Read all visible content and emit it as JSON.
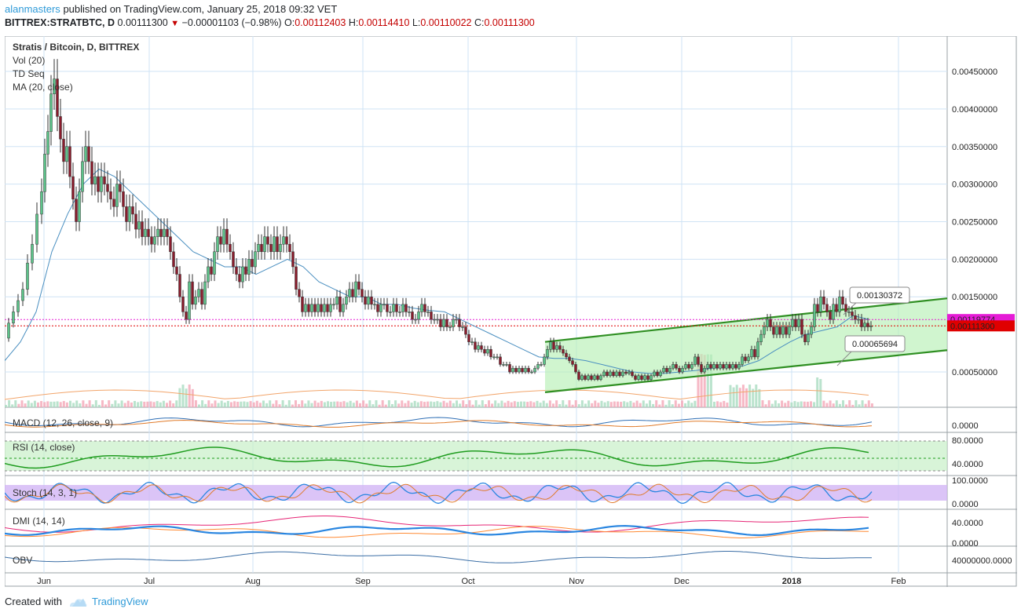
{
  "header": {
    "user": "alanmasters",
    "published": "published on TradingView.com, January 25, 2018 09:32 VET",
    "symbol": "BITTREX:STRATBTC, D",
    "last": "0.00111300",
    "change": "−0.00001103 (−0.98%)",
    "open_label": "O:",
    "open": "0.00112403",
    "high_label": "H:",
    "high": "0.00114410",
    "low_label": "L:",
    "low": "0.00110022",
    "close_label": "C:",
    "close": "0.00111300"
  },
  "legend": [
    "Stratis / Bitcoin, D, BITTREX",
    "Vol (20)",
    "TD Seq",
    "MA (20, close)"
  ],
  "footer": {
    "created_with": "Created with",
    "brand": "TradingView"
  },
  "colors": {
    "up": "#5cc48a",
    "down": "#8a1c2c",
    "ma": "#4a8fc0",
    "channel": "#2f8f22",
    "channel_fill": "#b7f0b5",
    "price_tag1": "#e51bd6",
    "price_tag2": "#e00000",
    "macd": "#2f6fb5",
    "rsi": "#1e9c1e",
    "stoch_fill": "#d2b5f5",
    "dmi_plus": "#ff8a33",
    "dmi_minus": "#e62575",
    "adx": "#2a86e0",
    "obv": "#3b6ea5"
  },
  "chart_data": {
    "type": "line",
    "title": "Stratis / Bitcoin, D, BITTREX",
    "x_ticks": [
      "Jun",
      "Jul",
      "Aug",
      "Sep",
      "Oct",
      "Nov",
      "Dec",
      "2018",
      "Feb"
    ],
    "y_ticks": [
      "0.00450000",
      "0.00400000",
      "0.00350000",
      "0.00300000",
      "0.00250000",
      "0.00200000",
      "0.00150000",
      "0.00050000"
    ],
    "ylim": [
      3e-05,
      0.00497
    ],
    "price_labels": [
      "0.00119774",
      "0.00111300"
    ],
    "annotations": [
      "0.00130372",
      "0.00065694"
    ],
    "price_path": [
      [
        0,
        0.00095
      ],
      [
        6,
        0.00115
      ],
      [
        12,
        0.0013
      ],
      [
        18,
        0.00145
      ],
      [
        24,
        0.0016
      ],
      [
        30,
        0.00195
      ],
      [
        36,
        0.0022
      ],
      [
        42,
        0.0026
      ],
      [
        48,
        0.0029
      ],
      [
        52,
        0.0034
      ],
      [
        56,
        0.0037
      ],
      [
        60,
        0.0042
      ],
      [
        64,
        0.0044
      ],
      [
        68,
        0.0039
      ],
      [
        72,
        0.0036
      ],
      [
        76,
        0.0033
      ],
      [
        80,
        0.0035
      ],
      [
        84,
        0.0031
      ],
      [
        88,
        0.0028
      ],
      [
        92,
        0.0025
      ],
      [
        96,
        0.0029
      ],
      [
        100,
        0.0033
      ],
      [
        104,
        0.0035
      ],
      [
        108,
        0.0033
      ],
      [
        112,
        0.003
      ],
      [
        116,
        0.0031
      ],
      [
        120,
        0.0029
      ],
      [
        124,
        0.0031
      ],
      [
        128,
        0.003
      ],
      [
        132,
        0.0029
      ],
      [
        136,
        0.0028
      ],
      [
        140,
        0.0027
      ],
      [
        144,
        0.003
      ],
      [
        148,
        0.0029
      ],
      [
        152,
        0.0027
      ],
      [
        156,
        0.0025
      ],
      [
        160,
        0.0027
      ],
      [
        164,
        0.0026
      ],
      [
        168,
        0.0024
      ],
      [
        172,
        0.0025
      ],
      [
        176,
        0.0023
      ],
      [
        180,
        0.0024
      ],
      [
        184,
        0.0023
      ],
      [
        188,
        0.0022
      ],
      [
        192,
        0.0023
      ],
      [
        196,
        0.0024
      ],
      [
        200,
        0.0023
      ],
      [
        204,
        0.0024
      ],
      [
        208,
        0.0023
      ],
      [
        212,
        0.0021
      ],
      [
        216,
        0.0019
      ],
      [
        220,
        0.0018
      ],
      [
        224,
        0.0015
      ],
      [
        228,
        0.0013
      ],
      [
        232,
        0.0012
      ],
      [
        236,
        0.0017
      ],
      [
        240,
        0.0014
      ],
      [
        244,
        0.0015
      ],
      [
        248,
        0.0016
      ],
      [
        252,
        0.0014
      ],
      [
        256,
        0.0017
      ],
      [
        260,
        0.0019
      ],
      [
        264,
        0.0018
      ],
      [
        268,
        0.0021
      ],
      [
        272,
        0.0023
      ],
      [
        276,
        0.0022
      ],
      [
        280,
        0.0024
      ],
      [
        284,
        0.0022
      ],
      [
        288,
        0.0021
      ],
      [
        292,
        0.0019
      ],
      [
        296,
        0.0018
      ],
      [
        300,
        0.0017
      ],
      [
        304,
        0.0019
      ],
      [
        308,
        0.0018
      ],
      [
        312,
        0.002
      ],
      [
        316,
        0.0019
      ],
      [
        320,
        0.0021
      ],
      [
        324,
        0.0022
      ],
      [
        328,
        0.0021
      ],
      [
        332,
        0.0023
      ],
      [
        336,
        0.0022
      ],
      [
        340,
        0.0021
      ],
      [
        344,
        0.0023
      ],
      [
        348,
        0.0021
      ],
      [
        352,
        0.0022
      ],
      [
        356,
        0.0023
      ],
      [
        360,
        0.0022
      ],
      [
        364,
        0.0021
      ],
      [
        368,
        0.0019
      ],
      [
        372,
        0.0016
      ],
      [
        376,
        0.0015
      ],
      [
        380,
        0.0013
      ],
      [
        384,
        0.0014
      ],
      [
        388,
        0.0013
      ],
      [
        392,
        0.0014
      ],
      [
        396,
        0.0013
      ],
      [
        400,
        0.0014
      ],
      [
        404,
        0.0013
      ],
      [
        408,
        0.0014
      ],
      [
        412,
        0.0013
      ],
      [
        416,
        0.0014
      ],
      [
        420,
        0.0014
      ],
      [
        424,
        0.0015
      ],
      [
        428,
        0.0013
      ],
      [
        432,
        0.0014
      ],
      [
        436,
        0.0015
      ],
      [
        440,
        0.0016
      ],
      [
        444,
        0.0015
      ],
      [
        448,
        0.0017
      ],
      [
        452,
        0.0016
      ],
      [
        456,
        0.0015
      ],
      [
        460,
        0.0014
      ],
      [
        464,
        0.0015
      ],
      [
        468,
        0.0014
      ],
      [
        472,
        0.0014
      ],
      [
        476,
        0.0013
      ],
      [
        480,
        0.0014
      ],
      [
        484,
        0.0014
      ],
      [
        488,
        0.0013
      ],
      [
        492,
        0.0013
      ],
      [
        496,
        0.0014
      ],
      [
        500,
        0.0013
      ],
      [
        504,
        0.0013
      ],
      [
        508,
        0.0014
      ],
      [
        512,
        0.0013
      ],
      [
        516,
        0.0013
      ],
      [
        520,
        0.0012
      ],
      [
        524,
        0.0012
      ],
      [
        528,
        0.0013
      ],
      [
        532,
        0.0014
      ],
      [
        536,
        0.0013
      ],
      [
        540,
        0.0013
      ],
      [
        544,
        0.0012
      ],
      [
        548,
        0.0012
      ],
      [
        552,
        0.0012
      ],
      [
        556,
        0.0011
      ],
      [
        560,
        0.0012
      ],
      [
        564,
        0.0011
      ],
      [
        568,
        0.0011
      ],
      [
        572,
        0.0012
      ],
      [
        576,
        0.0012
      ],
      [
        580,
        0.0011
      ],
      [
        584,
        0.0011
      ],
      [
        588,
        0.001
      ],
      [
        592,
        0.0009
      ],
      [
        596,
        0.0009
      ],
      [
        600,
        0.0008
      ],
      [
        604,
        0.00085
      ],
      [
        608,
        0.0008
      ],
      [
        612,
        0.00075
      ],
      [
        616,
        0.0008
      ],
      [
        620,
        0.0007
      ],
      [
        624,
        0.0007
      ],
      [
        628,
        0.0007
      ],
      [
        632,
        0.0006
      ],
      [
        636,
        0.0006
      ],
      [
        640,
        0.0006
      ],
      [
        644,
        0.0005
      ],
      [
        648,
        0.00055
      ],
      [
        652,
        0.0005
      ],
      [
        656,
        0.00055
      ],
      [
        660,
        0.0005
      ],
      [
        664,
        0.00055
      ],
      [
        668,
        0.0005
      ],
      [
        672,
        0.0005
      ],
      [
        676,
        0.00055
      ],
      [
        680,
        0.0006
      ],
      [
        684,
        0.0006
      ],
      [
        688,
        0.0007
      ],
      [
        692,
        0.0008
      ],
      [
        696,
        0.0009
      ],
      [
        700,
        0.0008
      ],
      [
        704,
        0.00085
      ],
      [
        708,
        0.0008
      ],
      [
        712,
        0.00075
      ],
      [
        716,
        0.0007
      ],
      [
        720,
        0.00065
      ],
      [
        724,
        0.0006
      ],
      [
        728,
        0.0005
      ],
      [
        732,
        0.0004
      ],
      [
        736,
        0.00045
      ],
      [
        740,
        0.0004
      ],
      [
        744,
        0.00045
      ],
      [
        748,
        0.0004
      ],
      [
        752,
        0.00045
      ],
      [
        756,
        0.0004
      ],
      [
        760,
        0.00045
      ],
      [
        764,
        0.0005
      ],
      [
        768,
        0.00045
      ],
      [
        772,
        0.0005
      ],
      [
        776,
        0.00045
      ],
      [
        780,
        0.0005
      ],
      [
        784,
        0.00045
      ],
      [
        788,
        0.0005
      ],
      [
        792,
        0.00048
      ],
      [
        796,
        0.0005
      ],
      [
        800,
        0.00045
      ],
      [
        804,
        0.0004
      ],
      [
        808,
        0.00045
      ],
      [
        812,
        0.0004
      ],
      [
        816,
        0.00045
      ],
      [
        820,
        0.0004
      ],
      [
        824,
        0.00045
      ],
      [
        828,
        0.0005
      ],
      [
        832,
        0.00045
      ],
      [
        836,
        0.0005
      ],
      [
        840,
        0.00055
      ],
      [
        844,
        0.0005
      ],
      [
        848,
        0.00055
      ],
      [
        852,
        0.0006
      ],
      [
        856,
        0.00055
      ],
      [
        860,
        0.0005
      ],
      [
        864,
        0.00055
      ],
      [
        868,
        0.0006
      ],
      [
        872,
        0.00055
      ],
      [
        876,
        0.0006
      ],
      [
        880,
        0.0007
      ],
      [
        884,
        0.0006
      ],
      [
        888,
        0.0005
      ],
      [
        892,
        0.00055
      ],
      [
        896,
        0.0006
      ],
      [
        900,
        0.00055
      ],
      [
        904,
        0.0006
      ],
      [
        908,
        0.00055
      ],
      [
        912,
        0.0006
      ],
      [
        916,
        0.00055
      ],
      [
        920,
        0.0006
      ],
      [
        924,
        0.00055
      ],
      [
        928,
        0.0006
      ],
      [
        932,
        0.00055
      ],
      [
        936,
        0.0006
      ],
      [
        940,
        0.0007
      ],
      [
        944,
        0.00065
      ],
      [
        948,
        0.0007
      ],
      [
        952,
        0.0008
      ],
      [
        956,
        0.0007
      ],
      [
        960,
        0.0009
      ],
      [
        964,
        0.001
      ],
      [
        968,
        0.0011
      ],
      [
        972,
        0.0012
      ],
      [
        976,
        0.0011
      ],
      [
        980,
        0.001
      ],
      [
        984,
        0.0011
      ],
      [
        988,
        0.001
      ],
      [
        992,
        0.0011
      ],
      [
        996,
        0.001
      ],
      [
        1000,
        0.0011
      ],
      [
        1004,
        0.0012
      ],
      [
        1008,
        0.0011
      ],
      [
        1012,
        0.0012
      ],
      [
        1016,
        0.001
      ],
      [
        1020,
        0.0009
      ],
      [
        1024,
        0.001
      ],
      [
        1028,
        0.0011
      ],
      [
        1032,
        0.0014
      ],
      [
        1036,
        0.0013
      ],
      [
        1040,
        0.0015
      ],
      [
        1044,
        0.0014
      ],
      [
        1048,
        0.0013
      ],
      [
        1052,
        0.0012
      ],
      [
        1056,
        0.0014
      ],
      [
        1060,
        0.0013
      ],
      [
        1064,
        0.0015
      ],
      [
        1068,
        0.0014
      ],
      [
        1072,
        0.0013
      ],
      [
        1076,
        0.0013
      ],
      [
        1080,
        0.00125
      ],
      [
        1084,
        0.0012
      ],
      [
        1088,
        0.0012
      ],
      [
        1092,
        0.0011
      ],
      [
        1096,
        0.00115
      ],
      [
        1100,
        0.0011
      ],
      [
        1104,
        0.00111
      ]
    ],
    "ma_path": [
      [
        0,
        0.00065
      ],
      [
        20,
        0.0009
      ],
      [
        40,
        0.0013
      ],
      [
        60,
        0.0021
      ],
      [
        80,
        0.0026
      ],
      [
        100,
        0.003
      ],
      [
        120,
        0.0032
      ],
      [
        140,
        0.0031
      ],
      [
        160,
        0.0029
      ],
      [
        180,
        0.0027
      ],
      [
        200,
        0.0025
      ],
      [
        220,
        0.0023
      ],
      [
        240,
        0.0021
      ],
      [
        260,
        0.002
      ],
      [
        280,
        0.0019
      ],
      [
        300,
        0.0019
      ],
      [
        320,
        0.0018
      ],
      [
        340,
        0.0019
      ],
      [
        360,
        0.002
      ],
      [
        380,
        0.0019
      ],
      [
        400,
        0.0017
      ],
      [
        420,
        0.0016
      ],
      [
        440,
        0.0015
      ],
      [
        460,
        0.0015
      ],
      [
        480,
        0.0014
      ],
      [
        500,
        0.0014
      ],
      [
        520,
        0.00135
      ],
      [
        540,
        0.00132
      ],
      [
        560,
        0.0013
      ],
      [
        580,
        0.0012
      ],
      [
        600,
        0.0011
      ],
      [
        620,
        0.001
      ],
      [
        640,
        0.0009
      ],
      [
        660,
        0.0008
      ],
      [
        680,
        0.0007
      ],
      [
        700,
        0.00068
      ],
      [
        720,
        0.00068
      ],
      [
        740,
        0.00065
      ],
      [
        760,
        0.0006
      ],
      [
        780,
        0.00055
      ],
      [
        800,
        0.0005
      ],
      [
        820,
        0.00048
      ],
      [
        840,
        0.00048
      ],
      [
        860,
        0.0005
      ],
      [
        880,
        0.00052
      ],
      [
        900,
        0.00055
      ],
      [
        920,
        0.00056
      ],
      [
        940,
        0.00058
      ],
      [
        960,
        0.00065
      ],
      [
        980,
        0.00078
      ],
      [
        1000,
        0.0009
      ],
      [
        1020,
        0.001
      ],
      [
        1040,
        0.00105
      ],
      [
        1060,
        0.0011
      ],
      [
        1080,
        0.00125
      ],
      [
        1100,
        0.0012
      ]
    ],
    "channel": {
      "upper": [
        [
          688,
          0.0009
        ],
        [
          1200,
          0.00148
        ]
      ],
      "lower": [
        [
          688,
          0.00023
        ],
        [
          1200,
          0.00079
        ]
      ]
    },
    "indicators": [
      {
        "name": "MACD (12, 26, close, 9)",
        "tick": "0.0000"
      },
      {
        "name": "RSI (14, close)",
        "ticks": [
          "80.0000",
          "40.0000"
        ]
      },
      {
        "name": "Stoch (14, 3, 1)",
        "ticks": [
          "100.0000",
          "0.0000"
        ]
      },
      {
        "name": "DMI (14, 14)",
        "ticks": [
          "40.0000",
          "0.0000"
        ]
      },
      {
        "name": "OBV",
        "tick": "40000000.0000"
      }
    ]
  }
}
